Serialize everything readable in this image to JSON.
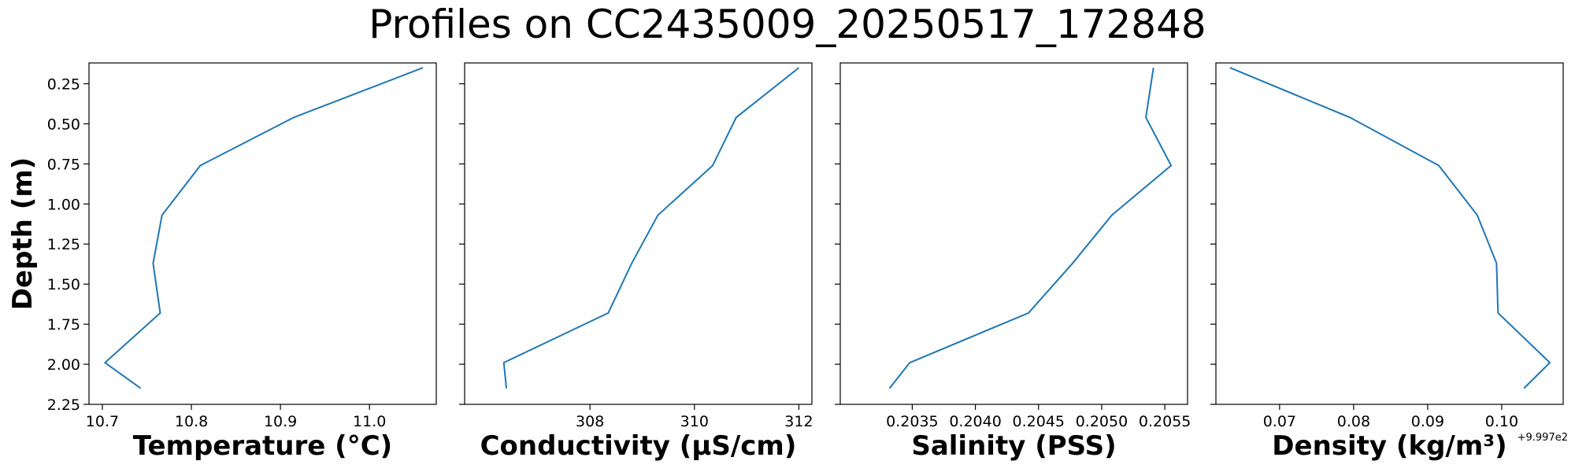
{
  "figure": {
    "title": "Profiles on CC2435009_20250517_172848",
    "ylabel": "Depth (m)",
    "line_color": "#1f77b4"
  },
  "chart_data": [
    {
      "type": "line",
      "name": "temperature",
      "xlabel": "Temperature (°C)",
      "ylabel": "Depth (m)",
      "ylim": [
        2.25,
        0.12
      ],
      "yticks": [
        0.25,
        0.5,
        0.75,
        1.0,
        1.25,
        1.5,
        1.75,
        2.0,
        2.25
      ],
      "ytick_labels": [
        "0.25",
        "0.50",
        "0.75",
        "1.00",
        "1.25",
        "1.50",
        "1.75",
        "2.00",
        "2.25"
      ],
      "xlim": [
        10.685,
        11.075
      ],
      "xticks": [
        10.7,
        10.8,
        10.9,
        11.0
      ],
      "xtick_labels": [
        "10.7",
        "10.8",
        "10.9",
        "11.0"
      ],
      "x": [
        11.06,
        10.915,
        10.81,
        10.767,
        10.757,
        10.765,
        10.703,
        10.743
      ],
      "y": [
        0.15,
        0.46,
        0.76,
        1.07,
        1.37,
        1.68,
        1.99,
        2.15
      ],
      "offset": ""
    },
    {
      "type": "line",
      "name": "conductivity",
      "xlabel": "Conductivity (µS/cm)",
      "ylim": [
        2.25,
        0.12
      ],
      "xlim": [
        305.6,
        312.25
      ],
      "xticks": [
        308,
        310,
        312
      ],
      "xtick_labels": [
        "308",
        "310",
        "312"
      ],
      "x": [
        312.0,
        310.8,
        310.35,
        309.3,
        308.8,
        308.35,
        306.35,
        306.4
      ],
      "y": [
        0.15,
        0.46,
        0.76,
        1.07,
        1.37,
        1.68,
        1.99,
        2.15
      ],
      "offset": ""
    },
    {
      "type": "line",
      "name": "salinity",
      "xlabel": "Salinity (PSS)",
      "ylim": [
        2.25,
        0.12
      ],
      "xlim": [
        0.20293,
        0.20568
      ],
      "xticks": [
        0.2035,
        0.204,
        0.2045,
        0.205,
        0.2055
      ],
      "xtick_labels": [
        "0.2035",
        "0.2040",
        "0.2045",
        "0.2050",
        "0.2055"
      ],
      "x": [
        0.20541,
        0.20535,
        0.20555,
        0.20508,
        0.20477,
        0.20442,
        0.20348,
        0.20332
      ],
      "y": [
        0.15,
        0.46,
        0.76,
        1.07,
        1.37,
        1.68,
        1.99,
        2.15
      ],
      "offset": ""
    },
    {
      "type": "line",
      "name": "density",
      "xlabel": "Density (kg/m³)",
      "ylim": [
        2.25,
        0.12
      ],
      "xlim": [
        0.0614,
        0.1083
      ],
      "xticks": [
        0.07,
        0.08,
        0.09,
        0.1
      ],
      "xtick_labels": [
        "0.07",
        "0.08",
        "0.09",
        "0.10"
      ],
      "x": [
        0.0633,
        0.0795,
        0.0915,
        0.0967,
        0.0993,
        0.0995,
        0.1065,
        0.103
      ],
      "y": [
        0.15,
        0.46,
        0.76,
        1.07,
        1.37,
        1.68,
        1.99,
        2.15
      ],
      "offset": "+9.997e2"
    }
  ]
}
